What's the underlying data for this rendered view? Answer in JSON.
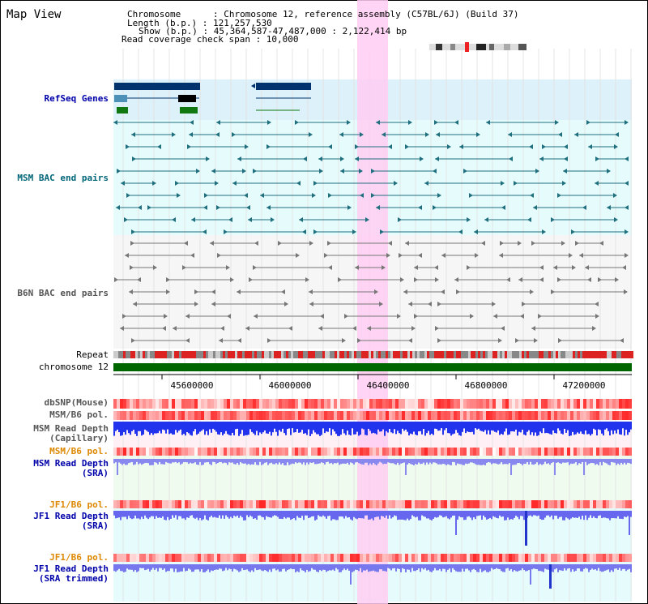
{
  "title": "Map View",
  "info": {
    "chromosome": "Chromosome      : Chromosome 12, reference assembly (C57BL/6J) (Build 37)",
    "length": "Length (b.p.) : 121,257,530",
    "show": "Show (b.p.) : 45,364,587-47,487,000 : 2,122,414 bp",
    "coverage": "Read coverage check span : 10,000"
  },
  "tracks": {
    "refseq": "RefSeq Genes",
    "msm_bac": "MSM BAC end pairs",
    "b6n_bac": "B6N BAC end pairs",
    "repeat": "Repeat",
    "chrom": "chromosome 12",
    "dbsnp": "dbSNP(Mouse)",
    "msm_pol1": "MSM/B6 pol.",
    "msm_depth_cap_1": "MSM Read Depth",
    "msm_depth_cap_2": "(Capillary)",
    "msm_pol2": "MSM/B6 pol.",
    "msm_depth_sra_1": "MSM Read Depth",
    "msm_depth_sra_2": "(SRA)",
    "jf1_pol1": "JF1/B6 pol.",
    "jf1_depth_1": "JF1 Read Depth",
    "jf1_depth_2": "(SRA)",
    "jf1_pol2": "JF1/B6 pol.",
    "jf1_trim_1": "JF1 Read Depth",
    "jf1_trim_2": "(SRA trimmed)"
  },
  "axis_ticks": [
    "45600000",
    "46000000",
    "46400000",
    "46800000",
    "47200000"
  ],
  "colors": {
    "navy_label": "#0000aa",
    "teal_label": "#006677",
    "gray_label": "#555555",
    "orange_label": "#dd8800",
    "highlight": "#ffccf2",
    "chrom_bar": "#006600"
  }
}
